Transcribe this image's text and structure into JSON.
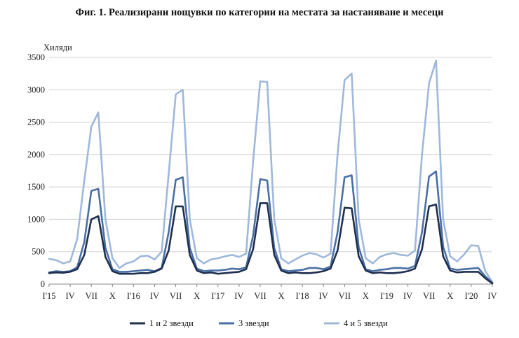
{
  "chart_data": {
    "type": "line",
    "title": "Фиг. 1. Реализирани нощувки по категории на местата за настаняване и месеци",
    "ylabel": "Хиляди",
    "xlabel": "",
    "ylim": [
      0,
      3500
    ],
    "yticks": [
      0,
      500,
      1000,
      1500,
      2000,
      2500,
      3000,
      3500
    ],
    "grid": true,
    "legend": "bottom",
    "x_tick_labels": [
      {
        "i": 0,
        "label": "I'15"
      },
      {
        "i": 3,
        "label": "IV"
      },
      {
        "i": 6,
        "label": "VII"
      },
      {
        "i": 9,
        "label": "X"
      },
      {
        "i": 12,
        "label": "I'16"
      },
      {
        "i": 15,
        "label": "IV"
      },
      {
        "i": 18,
        "label": "VII"
      },
      {
        "i": 21,
        "label": "X"
      },
      {
        "i": 24,
        "label": "I'17"
      },
      {
        "i": 27,
        "label": "IV"
      },
      {
        "i": 30,
        "label": "VII"
      },
      {
        "i": 33,
        "label": "X"
      },
      {
        "i": 36,
        "label": "I'18"
      },
      {
        "i": 39,
        "label": "IV"
      },
      {
        "i": 42,
        "label": "VII"
      },
      {
        "i": 45,
        "label": "X"
      },
      {
        "i": 48,
        "label": "I'19"
      },
      {
        "i": 51,
        "label": "IV"
      },
      {
        "i": 54,
        "label": "VII"
      },
      {
        "i": 57,
        "label": "X"
      },
      {
        "i": 60,
        "label": "I'20"
      },
      {
        "i": 63,
        "label": "IV"
      }
    ],
    "series": [
      {
        "name": "1 и 2 звезди",
        "color": "#1f2f4f",
        "values": [
          170,
          180,
          175,
          190,
          230,
          450,
          1000,
          1050,
          420,
          200,
          160,
          160,
          160,
          170,
          170,
          190,
          240,
          520,
          1200,
          1200,
          450,
          210,
          170,
          180,
          160,
          170,
          180,
          190,
          230,
          540,
          1250,
          1250,
          450,
          210,
          170,
          180,
          170,
          170,
          180,
          200,
          240,
          520,
          1180,
          1170,
          430,
          210,
          170,
          180,
          170,
          170,
          180,
          200,
          240,
          540,
          1200,
          1230,
          430,
          210,
          180,
          190,
          190,
          190,
          90,
          10
        ]
      },
      {
        "name": "3 звезди",
        "color": "#4a6fa5",
        "values": [
          180,
          200,
          190,
          200,
          260,
          650,
          1440,
          1470,
          560,
          230,
          190,
          190,
          200,
          210,
          220,
          200,
          250,
          800,
          1610,
          1650,
          560,
          240,
          200,
          210,
          210,
          220,
          240,
          230,
          260,
          750,
          1620,
          1600,
          560,
          230,
          200,
          210,
          220,
          250,
          250,
          230,
          270,
          800,
          1650,
          1680,
          570,
          230,
          200,
          220,
          230,
          250,
          250,
          240,
          280,
          800,
          1660,
          1740,
          580,
          240,
          220,
          230,
          240,
          250,
          120,
          20
        ]
      },
      {
        "name": "4 и 5 звезди",
        "color": "#9fb8dc",
        "values": [
          390,
          370,
          320,
          350,
          700,
          1600,
          2430,
          2650,
          1000,
          400,
          250,
          320,
          350,
          430,
          440,
          380,
          500,
          1700,
          2930,
          3000,
          1000,
          400,
          320,
          380,
          400,
          430,
          450,
          420,
          470,
          1900,
          3130,
          3120,
          1000,
          400,
          320,
          380,
          440,
          480,
          460,
          410,
          470,
          2000,
          3150,
          3250,
          1000,
          400,
          320,
          420,
          460,
          480,
          450,
          440,
          520,
          2000,
          3100,
          3450,
          1000,
          430,
          350,
          460,
          600,
          590,
          200,
          30
        ]
      }
    ]
  }
}
